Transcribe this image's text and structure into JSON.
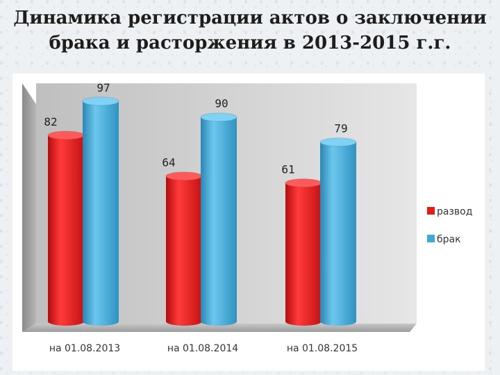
{
  "title": {
    "line1": "Динамика регистрации актов о заключении",
    "line2": "брака и расторжения в 2013-2015 г.г."
  },
  "chart_data": {
    "type": "bar",
    "style": "3d-cylinder",
    "categories": [
      "на 01.08.2013",
      "на 01.08.2014",
      "на 01.08.2015"
    ],
    "series": [
      {
        "name": "развод",
        "values": [
          82,
          64,
          61
        ],
        "color": "#e31b1b"
      },
      {
        "name": "брак",
        "values": [
          97,
          90,
          79
        ],
        "color": "#3fa9d6"
      }
    ],
    "ylim": [
      0,
      100
    ],
    "legend": "right",
    "grid": false
  }
}
